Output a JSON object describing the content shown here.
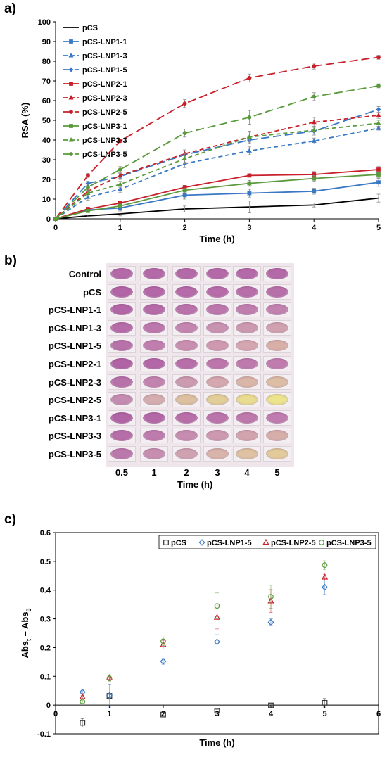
{
  "panels": [
    {
      "letter": "a)"
    },
    {
      "letter": "b)"
    },
    {
      "letter": "c)"
    }
  ],
  "chart_data": [
    {
      "type": "line",
      "panel": "a)",
      "xlabel": "Time (h)",
      "ylabel": "RSA (%)",
      "xlim": [
        0,
        5
      ],
      "ylim": [
        0,
        100
      ],
      "x_ticks": [
        0,
        1,
        2,
        3,
        4,
        5
      ],
      "y_ticks": [
        0,
        10,
        20,
        30,
        40,
        50,
        60,
        70,
        80,
        90,
        100
      ],
      "grid": false,
      "legend_position": "top-left",
      "x": [
        0,
        0.5,
        1,
        2,
        3,
        4,
        5
      ],
      "series": [
        {
          "name": "pCS",
          "color": "#000000",
          "dash": "solid",
          "marker": "none",
          "values": [
            0,
            1.5,
            2.5,
            5,
            6,
            7,
            10.5
          ],
          "errors": [
            0,
            0.5,
            1,
            1.5,
            3,
            1,
            2
          ]
        },
        {
          "name": "pCS-LNP1-1",
          "color": "#3a78c4",
          "dash": "solid",
          "marker": "square",
          "values": [
            0,
            4.5,
            5.5,
            12,
            13,
            14,
            18.5
          ],
          "errors": [
            0,
            1,
            1.5,
            2,
            2,
            1.5,
            2
          ]
        },
        {
          "name": "pCS-LNP1-3",
          "color": "#3a78c4",
          "dash": "dashed",
          "marker": "triangle",
          "values": [
            0,
            11,
            15,
            28,
            34.5,
            39.5,
            46
          ],
          "errors": [
            0,
            1.5,
            1.5,
            2,
            2,
            1.5,
            1
          ]
        },
        {
          "name": "pCS-LNP1-5",
          "color": "#3a78c4",
          "dash": "longdash",
          "marker": "diamond",
          "values": [
            0,
            18,
            21.5,
            32.5,
            40,
            44.5,
            55.5
          ],
          "errors": [
            0,
            1,
            1.5,
            2,
            2,
            2,
            1.5
          ]
        },
        {
          "name": "pCS-LNP2-1",
          "color": "#c8202a",
          "dash": "solid",
          "marker": "square",
          "values": [
            0,
            5,
            8,
            16,
            22,
            22.5,
            25
          ],
          "errors": [
            0,
            0.5,
            1,
            1,
            0.5,
            1.5,
            1.5
          ]
        },
        {
          "name": "pCS-LNP2-3",
          "color": "#c8202a",
          "dash": "dashed",
          "marker": "triangle",
          "values": [
            0,
            14,
            22,
            33,
            41.5,
            49,
            52.5
          ],
          "errors": [
            0,
            1.5,
            1.5,
            2,
            2.5,
            2.5,
            1.5
          ]
        },
        {
          "name": "pCS-LNP2-5",
          "color": "#c8202a",
          "dash": "longdash",
          "marker": "circle",
          "values": [
            0,
            22,
            39.5,
            58.5,
            71.5,
            77.5,
            82
          ],
          "errors": [
            0,
            1,
            0.5,
            2,
            2,
            1.5,
            1
          ]
        },
        {
          "name": "pCS-LNP3-1",
          "color": "#5a9a3c",
          "dash": "solid",
          "marker": "square",
          "values": [
            0,
            4,
            6.5,
            14.5,
            18,
            20.5,
            22.5
          ],
          "errors": [
            0,
            0.5,
            1,
            1,
            1.5,
            1.5,
            1.5
          ]
        },
        {
          "name": "pCS-LNP3-3",
          "color": "#5a9a3c",
          "dash": "dashed",
          "marker": "triangle",
          "values": [
            0,
            13,
            17.5,
            30.5,
            41.5,
            45,
            48.5
          ],
          "errors": [
            0,
            1.5,
            1.5,
            2.5,
            3,
            2,
            1.5
          ]
        },
        {
          "name": "pCS-LNP3-5",
          "color": "#5a9a3c",
          "dash": "longdash",
          "marker": "circle",
          "values": [
            0,
            16,
            25,
            43.5,
            51.5,
            62,
            67.5
          ],
          "errors": [
            0,
            1.5,
            1.5,
            2,
            3.5,
            2,
            1
          ]
        }
      ]
    },
    {
      "type": "scatter",
      "panel": "c)",
      "xlabel": "Time (h)",
      "ylabel_main": "Abs",
      "ylabel_sub1": "t",
      "ylabel_mid": " – Abs",
      "ylabel_sub2": "0",
      "xlim": [
        0,
        6
      ],
      "ylim": [
        -0.1,
        0.6
      ],
      "x_ticks": [
        0,
        1,
        2,
        3,
        4,
        5,
        6
      ],
      "y_ticks": [
        -0.1,
        0,
        0.1,
        0.2,
        0.3,
        0.4,
        0.5,
        0.6
      ],
      "y_tick_labels": [
        "-0.1",
        "0",
        "0.1",
        "0.2",
        "0.3",
        "0.4",
        "0.5",
        "0.6"
      ],
      "grid": false,
      "legend_position": "top-right",
      "series": [
        {
          "name": "pCS",
          "color": "#333333",
          "marker": "square",
          "x": [
            0.5,
            1,
            2,
            3,
            4,
            5
          ],
          "values": [
            -0.062,
            0.032,
            -0.033,
            -0.02,
            -0.001,
            0.008
          ],
          "errors": [
            0.015,
            0.005,
            0.005,
            0.005,
            0.005,
            0.015
          ]
        },
        {
          "name": "pCS-LNP1-5",
          "color": "#3a78c4",
          "marker": "diamond",
          "x": [
            0.5,
            1,
            2,
            3,
            4,
            5
          ],
          "values": [
            0.045,
            0.033,
            0.152,
            0.22,
            0.288,
            0.41
          ],
          "errors": [
            0.005,
            0.04,
            0.01,
            0.025,
            0.012,
            0.025
          ]
        },
        {
          "name": "pCS-LNP2-5",
          "color": "#c8202a",
          "marker": "triangle",
          "x": [
            0.5,
            1,
            2,
            3,
            4,
            5
          ],
          "values": [
            0.028,
            0.095,
            0.21,
            0.305,
            0.362,
            0.445
          ],
          "errors": [
            0.005,
            0.01,
            0.015,
            0.04,
            0.04,
            0.01
          ]
        },
        {
          "name": "pCS-LNP3-5",
          "color": "#5a9a3c",
          "marker": "circle",
          "x": [
            0.5,
            1,
            2,
            3,
            4,
            5
          ],
          "values": [
            0.012,
            0.093,
            0.222,
            0.345,
            0.377,
            0.487
          ],
          "errors": [
            0.005,
            0.01,
            0.015,
            0.045,
            0.04,
            0.015
          ]
        }
      ]
    }
  ],
  "well_plate": {
    "rows": [
      "Control",
      "pCS",
      "pCS-LNP1-1",
      "pCS-LNP1-3",
      "pCS-LNP1-5",
      "pCS-LNP2-1",
      "pCS-LNP2-3",
      "pCS-LNP2-5",
      "pCS-LNP3-1",
      "pCS-LNP3-3",
      "pCS-LNP3-5"
    ],
    "columns": [
      "0.5",
      "1",
      "2",
      "3",
      "4",
      "5"
    ],
    "xlabel": "Time (h)",
    "well_colors": [
      [
        "#b46aa8",
        "#b46aa8",
        "#b46aa8",
        "#b46aa8",
        "#b46aa8",
        "#b46aa8"
      ],
      [
        "#b265a6",
        "#b468a8",
        "#b66aa9",
        "#b76ca9",
        "#b86eaa",
        "#b870aa"
      ],
      [
        "#b266a6",
        "#b66ba9",
        "#b972aa",
        "#bc78ad",
        "#bf7eae",
        "#c282b0"
      ],
      [
        "#b66ca9",
        "#bc78ad",
        "#c486b0",
        "#c892b1",
        "#cc9ab0",
        "#d0a2b0"
      ],
      [
        "#b872aa",
        "#c07eae",
        "#c98fb0",
        "#cf9ab0",
        "#d4a6b0",
        "#d8b0a8"
      ],
      [
        "#b063a5",
        "#b468a8",
        "#b86fa9",
        "#bc76ac",
        "#be7aad",
        "#c07cae"
      ],
      [
        "#b872aa",
        "#c284af",
        "#cc9bb0",
        "#d4a8ae",
        "#dab6a8",
        "#ddbea4"
      ],
      [
        "#c48cb0",
        "#d4aeae",
        "#dcc0a0",
        "#e2ce98",
        "#e8dc90",
        "#ece48c"
      ],
      [
        "#b064a5",
        "#b468a8",
        "#b86ea9",
        "#bb74ab",
        "#bd78ac",
        "#c07cae"
      ],
      [
        "#b66ea9",
        "#bd7cad",
        "#c68db0",
        "#cc99b0",
        "#d2a4ae",
        "#d6aeaa"
      ],
      [
        "#bb78ac",
        "#c78eb0",
        "#d0a2b0",
        "#d8b4aa",
        "#dec2a2",
        "#e2ca9a"
      ]
    ]
  }
}
